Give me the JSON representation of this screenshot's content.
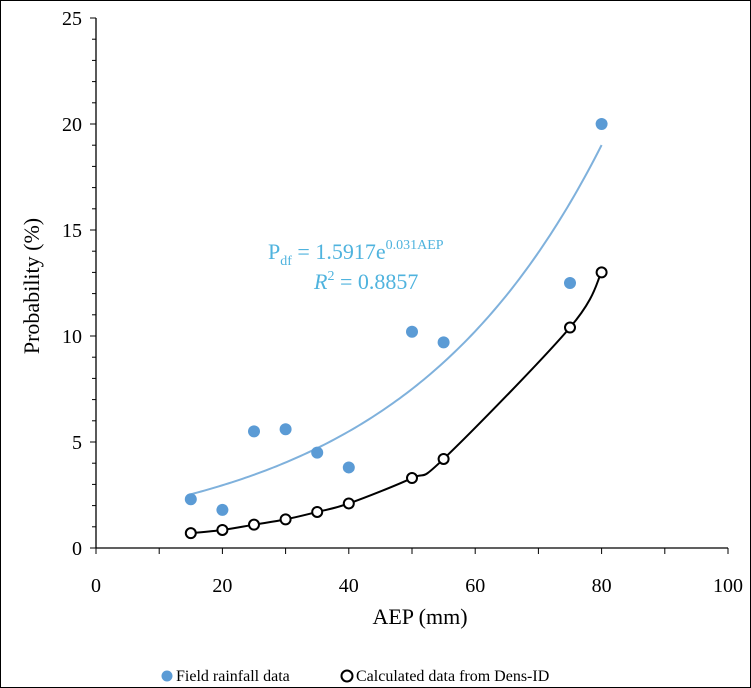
{
  "chart_data": {
    "type": "scatter",
    "title": "",
    "xlabel": "AEP (mm)",
    "ylabel": "Probability (%)",
    "xlim": [
      0,
      100
    ],
    "ylim": [
      0,
      25
    ],
    "xticks": [
      0,
      20,
      40,
      60,
      80,
      100
    ],
    "yticks": [
      0,
      5,
      10,
      15,
      20,
      25
    ],
    "grid": false,
    "legend_position": "bottom",
    "series": [
      {
        "name": "Field rainfall data",
        "marker": "filled-circle",
        "color": "#5b9bd5",
        "x": [
          15,
          20,
          25,
          30,
          35,
          40,
          50,
          55,
          75,
          80
        ],
        "y": [
          2.3,
          1.8,
          5.5,
          5.6,
          4.5,
          3.8,
          10.2,
          9.7,
          12.5,
          20.0
        ]
      },
      {
        "name": "Calculated data from Dens-ID",
        "marker": "open-circle",
        "color": "#000000",
        "x": [
          15,
          20,
          25,
          30,
          35,
          40,
          50,
          55,
          75,
          80
        ],
        "y": [
          0.7,
          0.85,
          1.1,
          1.35,
          1.7,
          2.1,
          3.3,
          4.2,
          10.4,
          13.0
        ]
      }
    ],
    "trendlines": [
      {
        "series": "Field rainfall data",
        "type": "exponential",
        "a": 1.5917,
        "b": 0.031,
        "color": "#7fb1dc"
      },
      {
        "series": "Calculated data from Dens-ID",
        "type": "smooth",
        "color": "#000000"
      }
    ],
    "annotation": {
      "p": "P",
      "sub": "df",
      "eq_mid": " = 1.5917e",
      "sup": "0.031AEP",
      "r": "R",
      "r_sup": "2",
      "r_rest": " = 0.8857",
      "color": "#4fb3de"
    }
  }
}
